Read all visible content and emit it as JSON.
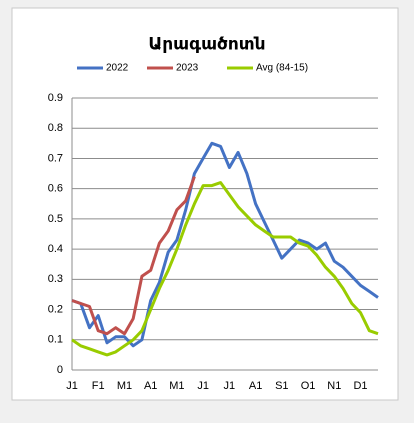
{
  "chart_data": {
    "type": "line",
    "title": "Արագածոտն",
    "categories": [
      "J1",
      null,
      null,
      "F1",
      null,
      null,
      "M1",
      null,
      null,
      "A1",
      null,
      null,
      "M1",
      null,
      null,
      "J1",
      null,
      null,
      "J1",
      null,
      null,
      "A1",
      null,
      null,
      "S1",
      null,
      null,
      "O1",
      null,
      null,
      "N1",
      null,
      null,
      "D1",
      null,
      null
    ],
    "series": [
      {
        "name": "2022",
        "color": "#4472c4",
        "values": [
          0.23,
          0.22,
          0.14,
          0.18,
          0.09,
          0.11,
          0.11,
          0.08,
          0.1,
          0.23,
          0.29,
          0.39,
          0.43,
          0.53,
          0.65,
          0.7,
          0.75,
          0.74,
          0.67,
          0.72,
          0.65,
          0.55,
          0.49,
          0.43,
          0.37,
          0.4,
          0.43,
          0.42,
          0.4,
          0.42,
          0.36,
          0.34,
          0.31,
          0.28,
          0.26,
          0.24
        ]
      },
      {
        "name": "2023",
        "color": "#c0504d",
        "values": [
          0.23,
          0.22,
          0.21,
          0.13,
          0.12,
          0.14,
          0.12,
          0.17,
          0.31,
          0.33,
          0.42,
          0.46,
          0.53,
          0.56,
          0.64,
          null,
          null,
          null,
          null,
          null,
          null,
          null,
          null,
          null,
          null,
          null,
          null,
          null,
          null,
          null,
          null,
          null,
          null,
          null,
          null,
          null
        ]
      },
      {
        "name": "Avg (84-15)",
        "color": "#99cc00",
        "values": [
          0.1,
          0.08,
          0.07,
          0.06,
          0.05,
          0.06,
          0.08,
          0.1,
          0.13,
          0.2,
          0.27,
          0.33,
          0.4,
          0.48,
          0.55,
          0.61,
          0.61,
          0.62,
          0.58,
          0.54,
          0.51,
          0.48,
          0.46,
          0.44,
          0.44,
          0.44,
          0.42,
          0.41,
          0.38,
          0.34,
          0.31,
          0.27,
          0.22,
          0.19,
          0.13,
          0.12
        ]
      }
    ],
    "ylim": [
      0,
      0.9
    ],
    "yticks": [
      0,
      0.1,
      0.2,
      0.3,
      0.4,
      0.5,
      0.6,
      0.7,
      0.8,
      0.9
    ],
    "grid": true,
    "legend": "top"
  }
}
